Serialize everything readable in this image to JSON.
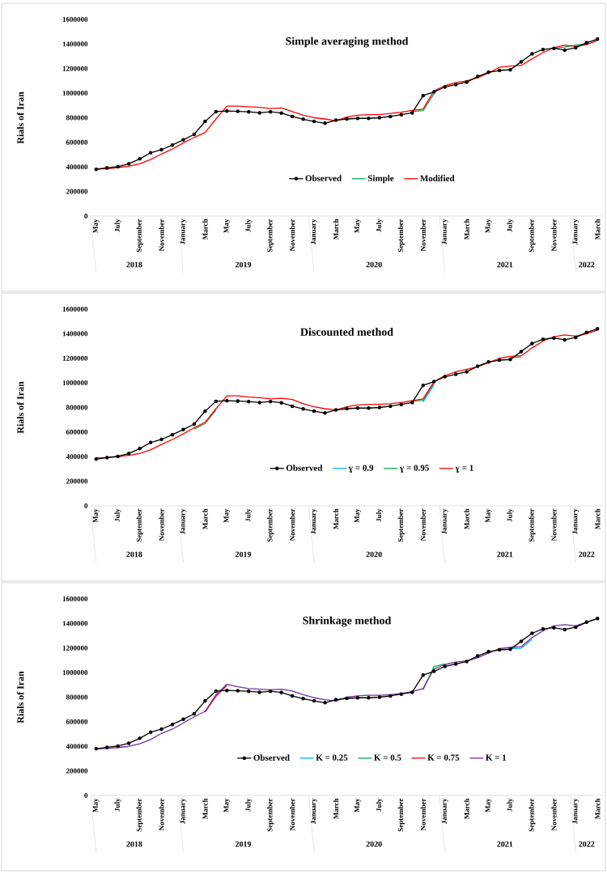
{
  "chart_data": [
    {
      "type": "line",
      "title": "Simple averaging method",
      "ylabel": "Rials of Iran",
      "categories": [
        "May",
        null,
        "July",
        null,
        "September",
        null,
        "November",
        null,
        "January",
        null,
        "March",
        null,
        "May",
        null,
        "July",
        null,
        "September",
        null,
        "November",
        null,
        "January",
        null,
        "March",
        null,
        "May",
        null,
        "July",
        null,
        "September",
        null,
        "November",
        null,
        "January",
        null,
        "March",
        null,
        "May",
        null,
        "July",
        null,
        "September",
        null,
        "November",
        null,
        "January",
        null,
        "March"
      ],
      "series": [
        {
          "name": "Observed",
          "color": "#000000",
          "marker": "circle",
          "values": [
            380000,
            392000,
            402000,
            425000,
            465000,
            515000,
            540000,
            578000,
            620000,
            665000,
            770000,
            850000,
            855000,
            852000,
            848000,
            840000,
            848000,
            838000,
            810000,
            788000,
            770000,
            755000,
            780000,
            790000,
            795000,
            795000,
            800000,
            810000,
            825000,
            840000,
            980000,
            1010000,
            1050000,
            1070000,
            1090000,
            1135000,
            1170000,
            1185000,
            1190000,
            1255000,
            1320000,
            1355000,
            1365000,
            1350000,
            1370000,
            1410000,
            1440000
          ]
        },
        {
          "name": "Simple",
          "color": "#00b050",
          "marker": "none",
          "values": [
            null,
            null,
            null,
            null,
            null,
            null,
            null,
            null,
            null,
            null,
            null,
            null,
            null,
            null,
            null,
            null,
            null,
            null,
            null,
            null,
            null,
            null,
            null,
            null,
            null,
            null,
            null,
            null,
            null,
            850000,
            858000,
            995000,
            null,
            null,
            null,
            null,
            null,
            null,
            null,
            null,
            null,
            null,
            1365000,
            1375000,
            1390000,
            1405000,
            null
          ]
        },
        {
          "name": "Modified",
          "color": "#ff0000",
          "marker": "none",
          "values": [
            385000,
            385000,
            395000,
            405000,
            425000,
            460000,
            505000,
            545000,
            595000,
            640000,
            680000,
            790000,
            895000,
            895000,
            890000,
            885000,
            875000,
            880000,
            850000,
            820000,
            800000,
            790000,
            775000,
            805000,
            820000,
            825000,
            825000,
            835000,
            845000,
            860000,
            870000,
            1020000,
            1060000,
            1085000,
            1100000,
            1125000,
            1165000,
            1210000,
            1220000,
            1225000,
            1280000,
            1330000,
            1370000,
            1390000,
            1380000,
            1395000,
            1430000
          ]
        }
      ],
      "ylim": [
        0,
        1600000
      ],
      "yticks": [
        0,
        200000,
        400000,
        600000,
        800000,
        1000000,
        1200000,
        1400000,
        1600000
      ],
      "legend": "bottom",
      "annotations": [
        "2018",
        "2019",
        "2020",
        "2021",
        "2022"
      ]
    },
    {
      "type": "line",
      "title": "Discounted method",
      "ylabel": "Rials of Iran",
      "categories": [
        "May",
        null,
        "July",
        null,
        "September",
        null,
        "November",
        null,
        "January",
        null,
        "March",
        null,
        "May",
        null,
        "July",
        null,
        "September",
        null,
        "November",
        null,
        "January",
        null,
        "March",
        null,
        "May",
        null,
        "July",
        null,
        "September",
        null,
        "November",
        null,
        "January",
        null,
        "March",
        null,
        "May",
        null,
        "July",
        null,
        "September",
        null,
        "November",
        null,
        "January",
        null,
        "March"
      ],
      "series": [
        {
          "name": "Observed",
          "color": "#000000",
          "marker": "circle",
          "values": [
            380000,
            392000,
            402000,
            425000,
            465000,
            515000,
            540000,
            578000,
            620000,
            665000,
            770000,
            850000,
            855000,
            852000,
            848000,
            840000,
            848000,
            838000,
            810000,
            788000,
            770000,
            755000,
            780000,
            790000,
            795000,
            795000,
            800000,
            810000,
            825000,
            840000,
            980000,
            1010000,
            1050000,
            1070000,
            1090000,
            1135000,
            1170000,
            1185000,
            1190000,
            1255000,
            1320000,
            1355000,
            1365000,
            1350000,
            1370000,
            1410000,
            1440000
          ]
        },
        {
          "name": "ɣ = 0.9",
          "color": "#00b0f0",
          "marker": "none",
          "values": [
            null,
            null,
            null,
            null,
            null,
            null,
            null,
            null,
            null,
            null,
            null,
            null,
            null,
            null,
            null,
            null,
            null,
            null,
            null,
            null,
            null,
            null,
            null,
            null,
            null,
            null,
            null,
            null,
            null,
            null,
            845000,
            985000,
            null,
            null,
            null,
            null,
            null,
            null,
            null,
            null,
            null,
            null,
            null,
            null,
            null,
            null,
            null
          ]
        },
        {
          "name": "ɣ = 0.95",
          "color": "#00b050",
          "marker": "none",
          "values": [
            null,
            null,
            null,
            null,
            null,
            null,
            null,
            null,
            null,
            625000,
            668000,
            778000,
            null,
            null,
            null,
            null,
            null,
            null,
            null,
            null,
            null,
            null,
            null,
            null,
            null,
            null,
            null,
            null,
            null,
            850000,
            858000,
            998000,
            null,
            null,
            null,
            null,
            null,
            null,
            1205000,
            1210000,
            null,
            null,
            null,
            null,
            null,
            null,
            null
          ]
        },
        {
          "name": "ɣ = 1",
          "color": "#ff0000",
          "marker": "none",
          "values": [
            390000,
            392000,
            400000,
            410000,
            425000,
            455000,
            500000,
            540000,
            585000,
            635000,
            680000,
            790000,
            895000,
            895000,
            885000,
            880000,
            870000,
            875000,
            865000,
            830000,
            805000,
            790000,
            780000,
            805000,
            820000,
            825000,
            825000,
            830000,
            840000,
            855000,
            870000,
            1010000,
            1060000,
            1090000,
            1110000,
            1130000,
            1165000,
            1200000,
            1215000,
            1220000,
            1285000,
            1340000,
            1375000,
            1390000,
            1380000,
            1400000,
            1430000
          ]
        }
      ],
      "ylim": [
        0,
        1600000
      ],
      "yticks": [
        0,
        200000,
        400000,
        600000,
        800000,
        1000000,
        1200000,
        1400000,
        1600000
      ],
      "legend": "bottom",
      "annotations": [
        "2018",
        "2019",
        "2020",
        "2021",
        "2022"
      ]
    },
    {
      "type": "line",
      "title": "Shrinkage method",
      "ylabel": "Rials of Iran",
      "categories": [
        "May",
        null,
        "July",
        null,
        "September",
        null,
        "November",
        null,
        "January",
        null,
        "March",
        null,
        "May",
        null,
        "July",
        null,
        "September",
        null,
        "November",
        null,
        "January",
        null,
        "March",
        null,
        "May",
        null,
        "July",
        null,
        "September",
        null,
        "November",
        null,
        "January",
        null,
        "March",
        null,
        "May",
        null,
        "July",
        null,
        "September",
        null,
        "November",
        null,
        "January",
        null,
        "March"
      ],
      "series": [
        {
          "name": "Observed",
          "color": "#000000",
          "marker": "circle",
          "values": [
            380000,
            392000,
            402000,
            425000,
            465000,
            515000,
            540000,
            578000,
            620000,
            665000,
            770000,
            850000,
            855000,
            852000,
            848000,
            840000,
            848000,
            838000,
            810000,
            788000,
            770000,
            755000,
            780000,
            790000,
            795000,
            795000,
            800000,
            810000,
            825000,
            840000,
            980000,
            1010000,
            1050000,
            1070000,
            1090000,
            1135000,
            1170000,
            1185000,
            1190000,
            1255000,
            1320000,
            1355000,
            1365000,
            1350000,
            1370000,
            1410000,
            1440000
          ]
        },
        {
          "name": "K = 0.25",
          "color": "#00b0f0",
          "marker": "none",
          "values": [
            null,
            null,
            null,
            null,
            null,
            null,
            null,
            null,
            null,
            null,
            null,
            null,
            null,
            null,
            null,
            null,
            null,
            null,
            null,
            null,
            null,
            null,
            null,
            null,
            null,
            null,
            null,
            null,
            null,
            null,
            null,
            null,
            null,
            null,
            null,
            null,
            null,
            null,
            1195000,
            1198000,
            1270000,
            null,
            null,
            null,
            null,
            null,
            null
          ]
        },
        {
          "name": "K = 0.5",
          "color": "#00b050",
          "marker": "none",
          "values": [
            null,
            null,
            null,
            null,
            null,
            null,
            null,
            null,
            null,
            null,
            null,
            null,
            null,
            null,
            null,
            null,
            null,
            null,
            null,
            null,
            null,
            null,
            null,
            null,
            null,
            null,
            null,
            null,
            null,
            null,
            860000,
            1050000,
            1070000,
            null,
            null,
            null,
            null,
            null,
            null,
            null,
            null,
            null,
            null,
            null,
            null,
            null,
            null
          ]
        },
        {
          "name": "K = 0.75",
          "color": "#ff0000",
          "marker": "none",
          "values": [
            null,
            null,
            null,
            null,
            null,
            null,
            null,
            null,
            null,
            null,
            678000,
            808000,
            895000,
            null,
            null,
            null,
            null,
            null,
            null,
            null,
            null,
            null,
            null,
            null,
            null,
            null,
            null,
            null,
            null,
            null,
            null,
            null,
            null,
            null,
            null,
            null,
            null,
            null,
            null,
            null,
            null,
            null,
            null,
            null,
            null,
            null,
            null
          ]
        },
        {
          "name": "K = 1",
          "color": "#7030a0",
          "marker": "none",
          "values": [
            380000,
            382000,
            390000,
            400000,
            420000,
            455000,
            505000,
            540000,
            590000,
            640000,
            685000,
            820000,
            905000,
            885000,
            870000,
            865000,
            860000,
            865000,
            850000,
            820000,
            795000,
            780000,
            770000,
            800000,
            810000,
            815000,
            815000,
            820000,
            830000,
            845000,
            870000,
            1030000,
            1065000,
            1085000,
            1095000,
            1120000,
            1160000,
            1195000,
            1205000,
            1210000,
            1285000,
            1340000,
            1380000,
            1390000,
            1380000,
            1410000,
            1440000
          ]
        }
      ],
      "ylim": [
        0,
        1600000
      ],
      "yticks": [
        0,
        200000,
        400000,
        600000,
        800000,
        1000000,
        1200000,
        1400000,
        1600000
      ],
      "legend": "bottom",
      "annotations": [
        "2018",
        "2019",
        "2020",
        "2021",
        "2022"
      ]
    }
  ]
}
